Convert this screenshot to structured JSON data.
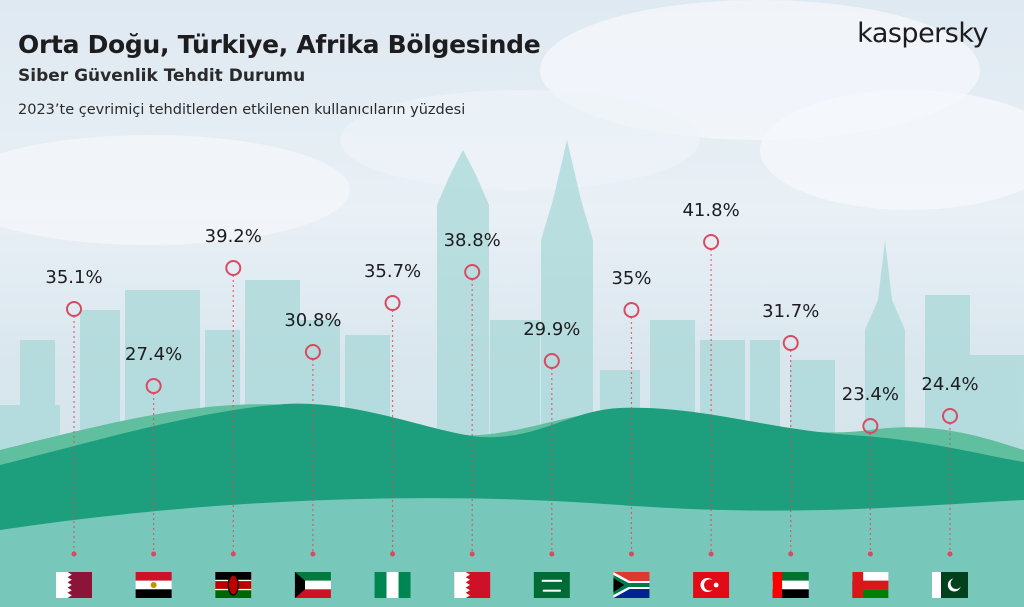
{
  "header": {
    "title": "Orta Doğu, Türkiye, Afrika Bölgesinde",
    "subtitle": "Siber Güvenlik Tehdit Durumu",
    "caption": "2023’te çevrimiçi tehditlerden etkilenen kullanıcıların yüzdesi",
    "brand": "kaspersky"
  },
  "chart_data": {
    "type": "scatter",
    "title": "Orta Doğu, Türkiye, Afrika Bölgesinde",
    "subtitle": "Siber Güvenlik Tehdit Durumu",
    "ylabel": "",
    "categories": [
      "qatar-flag",
      "egypt-flag",
      "kenya-flag",
      "kuwait-flag",
      "nigeria-flag",
      "bahrain-flag",
      "saudi-arabia-flag",
      "south-africa-flag",
      "turkey-flag",
      "uae-flag",
      "oman-flag",
      "pakistan-flag"
    ],
    "values": [
      35.1,
      27.4,
      39.2,
      30.8,
      35.7,
      38.8,
      29.9,
      35,
      41.8,
      31.7,
      23.4,
      24.4
    ],
    "labels": [
      "35.1%",
      "27.4%",
      "39.2%",
      "30.8%",
      "35.7%",
      "38.8%",
      "29.9%",
      "35%",
      "41.8%",
      "31.7%",
      "23.4%",
      "24.4%"
    ],
    "ylim": [
      22,
      43
    ],
    "grid": false,
    "legend": "none"
  },
  "colors": {
    "marker": "#d94a62",
    "hill_front": "#1d9e7c",
    "hill_back": "#5fbf9f",
    "skyline": "#a9d8d8",
    "sky_top": "#dfe9f1"
  }
}
